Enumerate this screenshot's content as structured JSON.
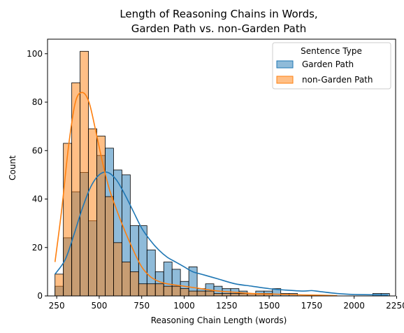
{
  "chart_data": {
    "type": "histogram",
    "title_line1": "Length of Reasoning Chains in Words,",
    "title_line2": "Garden Path vs. non-Garden Path",
    "xlabel": "Reasoning Chain Length (words)",
    "ylabel": "Count",
    "xlim": [
      196,
      2244
    ],
    "ylim": [
      0,
      106
    ],
    "xticks": [
      250,
      500,
      750,
      1000,
      1250,
      1500,
      1750,
      2000,
      2250
    ],
    "yticks": [
      0,
      20,
      40,
      60,
      80,
      100
    ],
    "bin_start": 240,
    "bin_width": 49.2,
    "legend": {
      "title": "Sentence Type",
      "position": "top-right"
    },
    "series": [
      {
        "name": "Garden Path",
        "color": "#1f77b4",
        "counts": [
          4,
          24,
          43,
          51,
          31,
          58,
          61,
          52,
          50,
          29,
          29,
          19,
          10,
          14,
          11,
          6,
          12,
          3,
          5,
          4,
          3,
          3,
          2,
          1,
          2,
          2,
          3,
          1,
          1,
          0,
          0,
          0,
          0,
          0,
          0,
          0,
          0,
          0,
          1,
          1
        ],
        "kde_x": [
          240,
          300,
          350,
          400,
          450,
          500,
          550,
          600,
          650,
          700,
          750,
          800,
          850,
          900,
          950,
          1000,
          1050,
          1100,
          1150,
          1200,
          1300,
          1400,
          1500,
          1600,
          1700,
          1750,
          1800,
          1900,
          2000,
          2100,
          2200
        ],
        "kde_y": [
          9,
          15,
          25,
          36,
          45,
          50,
          51,
          48,
          42,
          35,
          28,
          23,
          19,
          16,
          14,
          12,
          10,
          9,
          8,
          7,
          5,
          4,
          3,
          2.4,
          2,
          2.2,
          1.8,
          1,
          0.6,
          0.5,
          0.4
        ]
      },
      {
        "name": "non-Garden Path",
        "color": "#ff7f0e",
        "counts": [
          9,
          63,
          88,
          101,
          69,
          66,
          41,
          22,
          14,
          10,
          5,
          5,
          5,
          4,
          4,
          3,
          2,
          2,
          2,
          1,
          1,
          1,
          1,
          1,
          1,
          1,
          0,
          0,
          0,
          0,
          0,
          0,
          0,
          0,
          0,
          0,
          0,
          0,
          0,
          0
        ],
        "kde_x": [
          240,
          280,
          320,
          360,
          400,
          440,
          480,
          520,
          560,
          600,
          650,
          700,
          750,
          800,
          850,
          900,
          1000,
          1100,
          1200,
          1300,
          1400,
          1500,
          1600,
          1700,
          1800,
          1900
        ],
        "kde_y": [
          14,
          36,
          62,
          80,
          84,
          80,
          68,
          55,
          44,
          36,
          27,
          19,
          12,
          8,
          6,
          5,
          4,
          3,
          2,
          1.5,
          1,
          0.8,
          0.6,
          0.4,
          0.3,
          0.1
        ]
      }
    ]
  }
}
